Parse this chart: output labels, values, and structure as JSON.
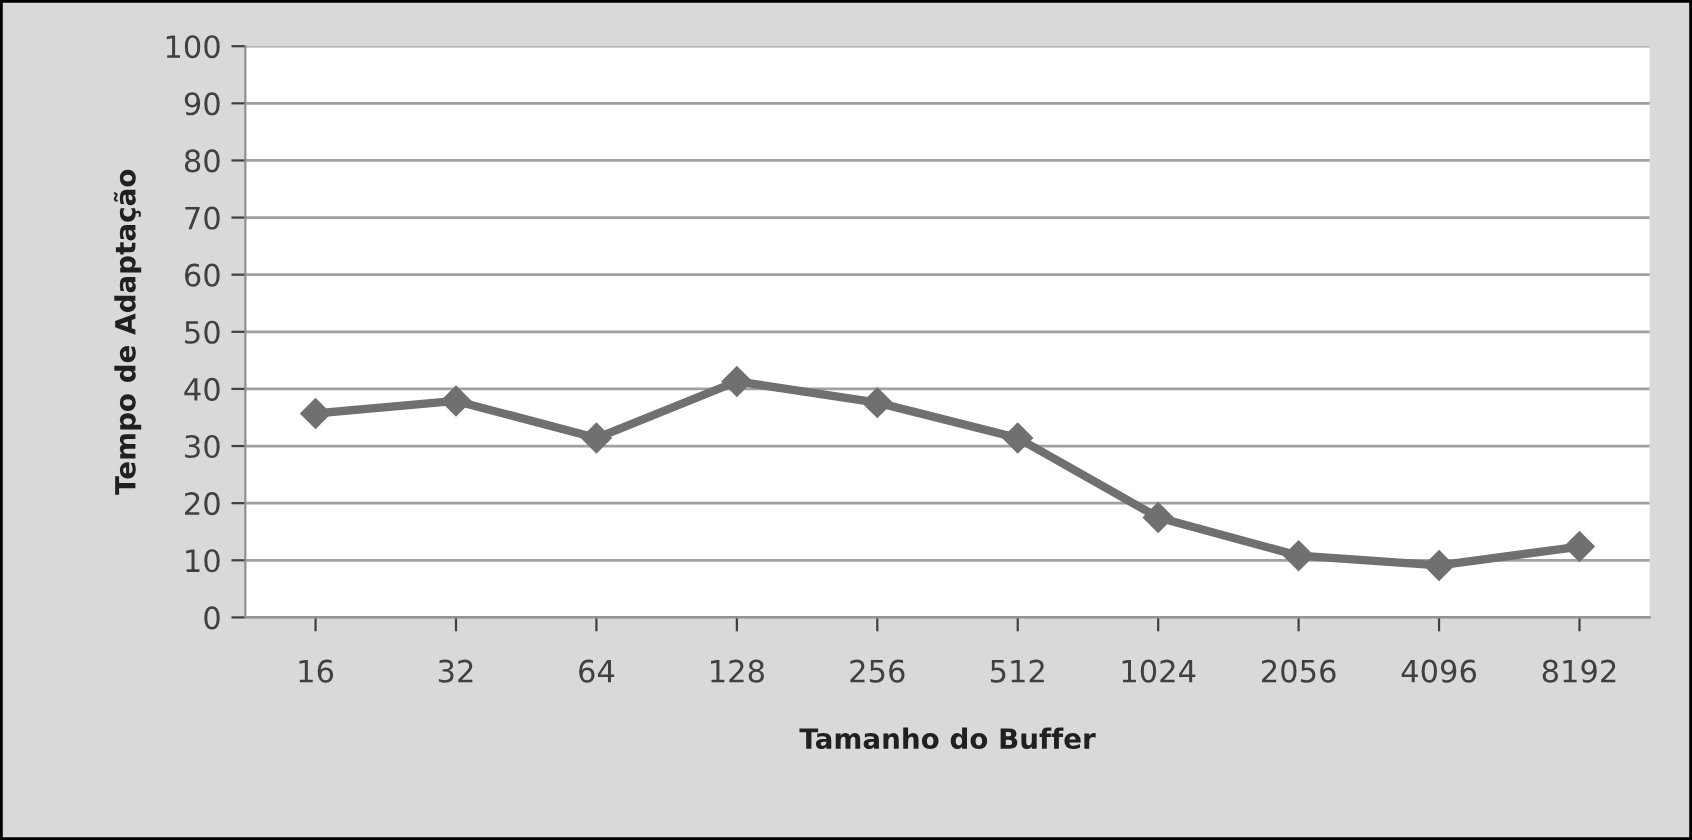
{
  "chart_data": {
    "type": "line",
    "xlabel": "Tamanho do Buffer",
    "ylabel": "Tempo de Adaptação",
    "categories": [
      "16",
      "32",
      "64",
      "128",
      "256",
      "512",
      "1024",
      "2056",
      "4096",
      "8192"
    ],
    "series": [
      {
        "color": "#707070",
        "values": [
          35.7,
          37.9,
          31.4,
          41.3,
          37.6,
          31.4,
          17.5,
          10.8,
          9.1,
          12.4
        ]
      }
    ],
    "ylim": [
      0,
      100
    ],
    "yticks": [
      0,
      10,
      20,
      30,
      40,
      50,
      60,
      70,
      80,
      90,
      100
    ],
    "grid": "y",
    "marker": "diamond",
    "line_style": "solid",
    "legend": false
  }
}
